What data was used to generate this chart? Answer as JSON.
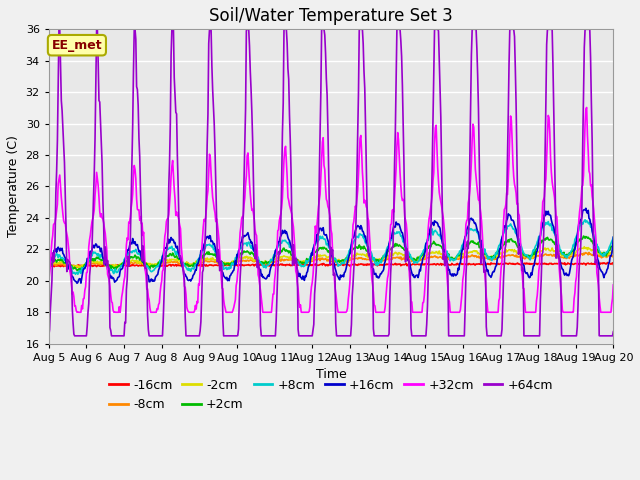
{
  "title": "Soil/Water Temperature Set 3",
  "xlabel": "Time",
  "ylabel": "Temperature (C)",
  "ylim": [
    16,
    36
  ],
  "yticks": [
    16,
    18,
    20,
    22,
    24,
    26,
    28,
    30,
    32,
    34,
    36
  ],
  "date_labels": [
    "Aug 5",
    "Aug 6",
    "Aug 7",
    "Aug 8",
    "Aug 9",
    "Aug 10",
    "Aug 11",
    "Aug 12",
    "Aug 13",
    "Aug 14",
    "Aug 15",
    "Aug 16",
    "Aug 17",
    "Aug 18",
    "Aug 19",
    "Aug 20"
  ],
  "series_order": [
    "-16cm",
    "-8cm",
    "-2cm",
    "+2cm",
    "+8cm",
    "+16cm",
    "+32cm",
    "+64cm"
  ],
  "series": {
    "-16cm": {
      "color": "#ff0000",
      "linewidth": 1.2
    },
    "-8cm": {
      "color": "#ff8800",
      "linewidth": 1.2
    },
    "-2cm": {
      "color": "#dddd00",
      "linewidth": 1.2
    },
    "+2cm": {
      "color": "#00bb00",
      "linewidth": 1.2
    },
    "+8cm": {
      "color": "#00cccc",
      "linewidth": 1.2
    },
    "+16cm": {
      "color": "#0000cc",
      "linewidth": 1.2
    },
    "+32cm": {
      "color": "#ff00ff",
      "linewidth": 1.2
    },
    "+64cm": {
      "color": "#9900cc",
      "linewidth": 1.2
    }
  },
  "annotation_text": "EE_met",
  "annotation_color": "#880000",
  "annotation_bg": "#ffffaa",
  "annotation_edge": "#aaaa00",
  "plot_bg_color": "#e8e8e8",
  "fig_bg_color": "#f0f0f0",
  "grid_color": "#ffffff",
  "title_fontsize": 12,
  "axis_fontsize": 9,
  "tick_fontsize": 8,
  "legend_fontsize": 9
}
